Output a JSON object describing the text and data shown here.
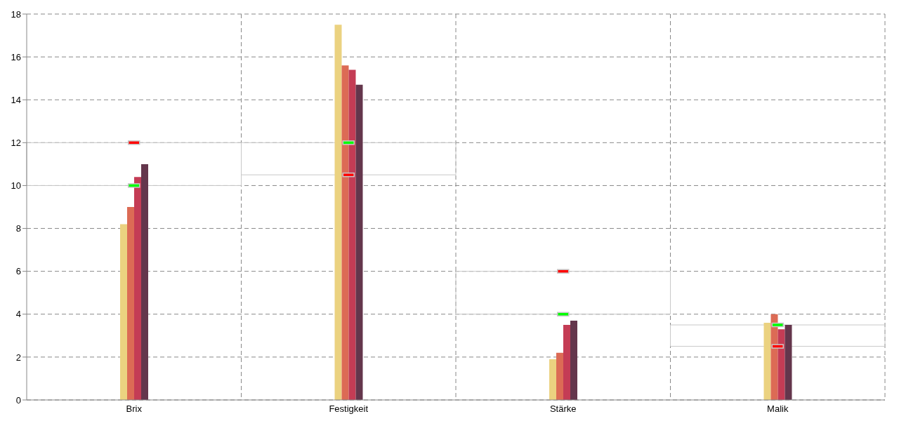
{
  "chart_data": {
    "type": "bar",
    "categories": [
      "Brix",
      "Festigkeit",
      "Stärke",
      "Malik"
    ],
    "series": [
      {
        "color": "#ebd280",
        "values": [
          8.2,
          17.5,
          1.9,
          3.6
        ]
      },
      {
        "color": "#dc6b55",
        "values": [
          9.0,
          15.6,
          2.2,
          4.0
        ]
      },
      {
        "color": "#c43c55",
        "values": [
          10.4,
          15.4,
          3.5,
          3.3
        ]
      },
      {
        "color": "#64364c",
        "values": [
          11.0,
          14.7,
          3.7,
          3.5
        ]
      },
      {
        "type": "scatter",
        "marker": "square",
        "color": "#00ff00",
        "x": [
          "Brix",
          "Festigkeit",
          "Stärke",
          "Malik"
        ],
        "values": [
          10,
          12,
          4,
          3.5
        ]
      },
      {
        "type": "scatter",
        "marker": "square",
        "color": "#ff0000",
        "x": [
          "Brix",
          "Festigkeit",
          "Stärke",
          "Malik"
        ],
        "values": [
          12,
          10.5,
          6,
          2.5
        ]
      }
    ],
    "ylim": [
      0,
      18
    ],
    "yticks": [
      0,
      2,
      4,
      6,
      8,
      10,
      12,
      14,
      16,
      18
    ],
    "grid": true
  }
}
